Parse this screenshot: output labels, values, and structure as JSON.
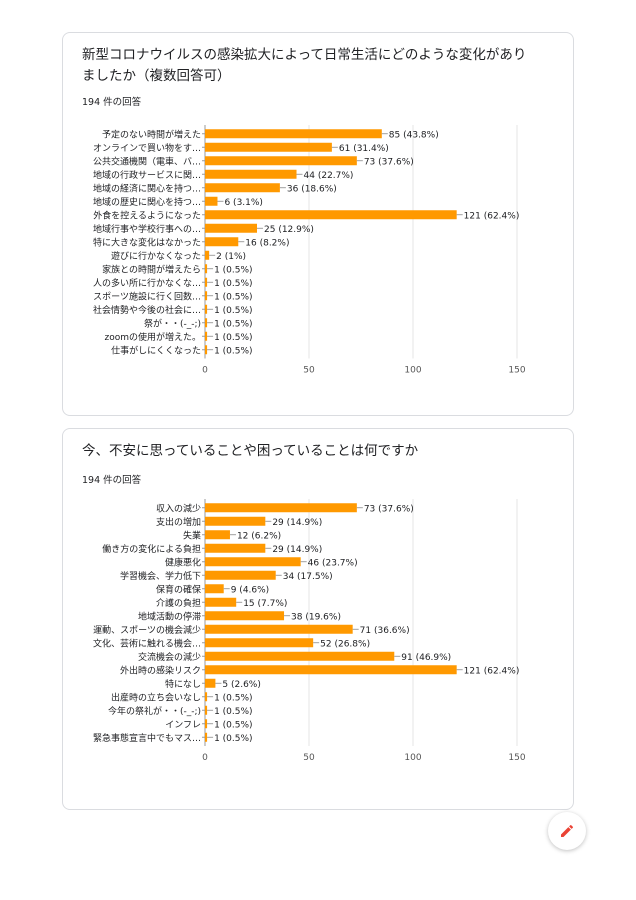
{
  "colors": {
    "bar": "#ff9900",
    "grid": "#e6e6e6",
    "accent": "#ea4335"
  },
  "fab": {
    "icon": "pencil-icon"
  },
  "questions": [
    {
      "title": "新型コロナウイルスの感染拡大によって日常生活にどのような変化がありましたか（複数回答可）",
      "count": "194 件の回答",
      "chart_data": {
        "type": "bar",
        "orientation": "horizontal",
        "categories": [
          "予定のない時間が増えた",
          "オンラインで買い物をす…",
          "公共交通機関（電車、バ…",
          "地域の行政サービスに関…",
          "地域の経済に関心を持つ…",
          "地域の歴史に関心を持つ…",
          "外食を控えるようになった",
          "地域行事や学校行事への…",
          "特に大きな変化はなかった",
          "遊びに行かなくなった",
          "家族との時間が増えたら",
          "人の多い所に行かなくな…",
          "スポーツ施設に行く回数…",
          "社会情勢や今後の社会に…",
          "祭が・・(-_-;)",
          "zoomの使用が増えた。",
          "仕事がしにくくなった"
        ],
        "values": [
          85,
          61,
          73,
          44,
          36,
          6,
          121,
          25,
          16,
          2,
          1,
          1,
          1,
          1,
          1,
          1,
          1
        ],
        "data_labels": [
          "85 (43.8%)",
          "61 (31.4%)",
          "73 (37.6%)",
          "44 (22.7%)",
          "36 (18.6%)",
          "6 (3.1%)",
          "121 (62.4%)",
          "25 (12.9%)",
          "16 (8.2%)",
          "2 (1%)",
          "1 (0.5%)",
          "1 (0.5%)",
          "1 (0.5%)",
          "1 (0.5%)",
          "1 (0.5%)",
          "1 (0.5%)",
          "1 (0.5%)"
        ],
        "xticks": [
          "0",
          "50",
          "100",
          "150"
        ],
        "xlim": [
          0,
          150
        ],
        "grid": true
      }
    },
    {
      "title": "今、不安に思っていることや困っていることは何ですか",
      "count": "194 件の回答",
      "chart_data": {
        "type": "bar",
        "orientation": "horizontal",
        "categories": [
          "収入の減少",
          "支出の増加",
          "失業",
          "働き方の変化による負担",
          "健康悪化",
          "学習機会、学力低下",
          "保育の確保",
          "介護の負担",
          "地域活動の停滞",
          "運動、スポーツの機会減少",
          "文化、芸術に触れる機会…",
          "交流機会の減少",
          "外出時の感染リスク",
          "特になし",
          "出産時の立ち会いなし",
          "今年の祭礼が・・(-_-;)",
          "インフレ",
          "緊急事態宣言中でもマス…"
        ],
        "values": [
          73,
          29,
          12,
          29,
          46,
          34,
          9,
          15,
          38,
          71,
          52,
          91,
          121,
          5,
          1,
          1,
          1,
          1
        ],
        "data_labels": [
          "73 (37.6%)",
          "29 (14.9%)",
          "12 (6.2%)",
          "29 (14.9%)",
          "46 (23.7%)",
          "34 (17.5%)",
          "9 (4.6%)",
          "15 (7.7%)",
          "38 (19.6%)",
          "71 (36.6%)",
          "52 (26.8%)",
          "91 (46.9%)",
          "121 (62.4%)",
          "5 (2.6%)",
          "1 (0.5%)",
          "1 (0.5%)",
          "1 (0.5%)",
          "1 (0.5%)"
        ],
        "xticks": [
          "0",
          "50",
          "100",
          "150"
        ],
        "xlim": [
          0,
          150
        ],
        "grid": true
      }
    }
  ]
}
